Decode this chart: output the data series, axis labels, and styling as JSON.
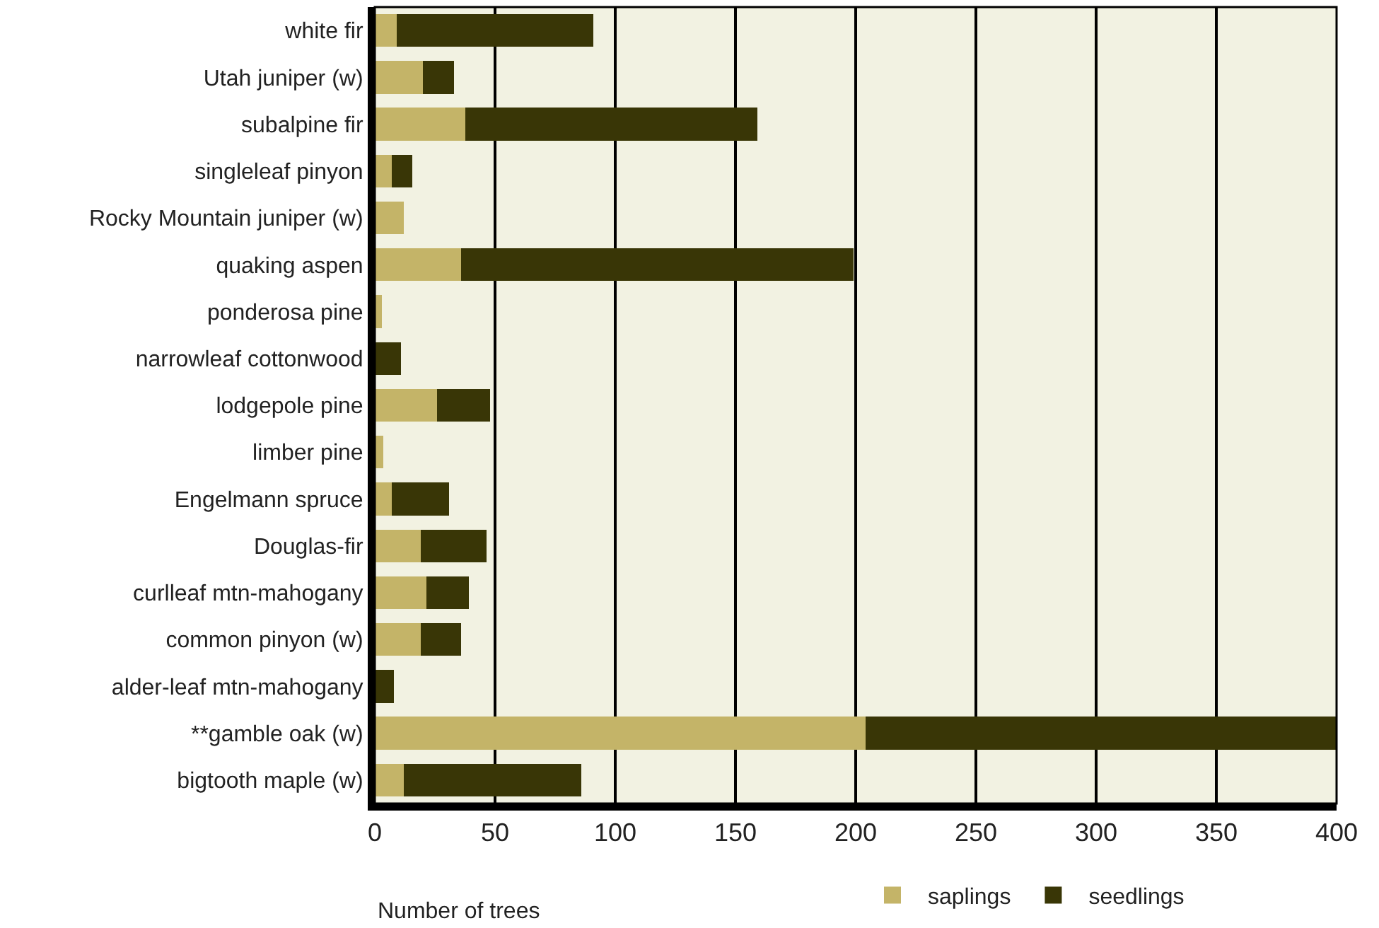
{
  "chart_data": {
    "type": "bar",
    "orientation": "horizontal",
    "stacked": true,
    "xlabel": "Number of trees",
    "categories": [
      "white fir",
      "Utah juniper (w)",
      "subalpine fir",
      "singleleaf pinyon",
      "Rocky Mountain juniper (w)",
      "quaking aspen",
      "ponderosa pine",
      "narrowleaf cottonwood",
      "lodgepole pine",
      "limber pine",
      "Engelmann spruce",
      "Douglas-fir",
      "curlleaf mtn-mahogany",
      "common pinyon (w)",
      "alder-leaf mtn-mahogany",
      "**gamble oak (w)",
      "bigtooth maple (w)"
    ],
    "series": [
      {
        "name": "saplings",
        "color": "#c4b468",
        "values": [
          9,
          20,
          37.5,
          7,
          12,
          36,
          3,
          0,
          26,
          3.5,
          7,
          19,
          21.5,
          19,
          0,
          204,
          12
        ]
      },
      {
        "name": "seedlings",
        "color": "#393606",
        "values": [
          82,
          13,
          121.5,
          8.5,
          0,
          163,
          0,
          11,
          22,
          0,
          24,
          27.5,
          17.5,
          17,
          8,
          196,
          74
        ]
      }
    ],
    "xlim": [
      0,
      400
    ],
    "xticks": [
      0,
      50,
      100,
      150,
      200,
      250,
      300,
      350,
      400
    ],
    "grid": "x",
    "legend": "bottom"
  }
}
